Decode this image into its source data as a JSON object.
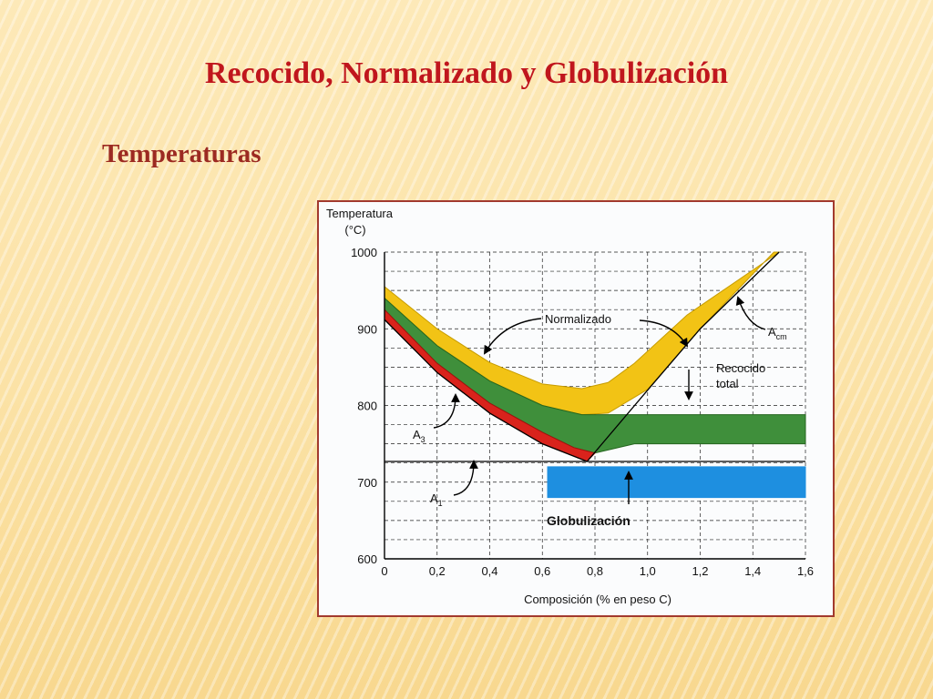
{
  "slide": {
    "title": "Recocido, Normalizado y Globulización",
    "subtitle": "Temperaturas"
  },
  "chart_data": {
    "type": "area",
    "ylabel_lines": [
      "Temperatura",
      "(°C)"
    ],
    "xlabel": "Composición (% en peso C)",
    "xlim": [
      0,
      1.6
    ],
    "ylim": [
      600,
      1000
    ],
    "x_ticks": [
      "0",
      "0,2",
      "0,4",
      "0,6",
      "0,8",
      "1,0",
      "1,2",
      "1,4",
      "1,6"
    ],
    "y_ticks": [
      "1000",
      "900",
      "800",
      "700",
      "600"
    ],
    "grid": true,
    "lines": [
      {
        "name": "A1",
        "points": [
          [
            0,
            727
          ],
          [
            1.6,
            727
          ]
        ]
      },
      {
        "name": "A3",
        "points": [
          [
            0,
            912
          ],
          [
            0.2,
            843
          ],
          [
            0.4,
            790
          ],
          [
            0.6,
            750
          ],
          [
            0.77,
            727
          ]
        ]
      },
      {
        "name": "Acm",
        "points": [
          [
            0.77,
            727
          ],
          [
            1.0,
            820
          ],
          [
            1.2,
            900
          ],
          [
            1.5,
            1000
          ]
        ]
      }
    ],
    "regions": [
      {
        "name": "Normalizado",
        "color": "#f2c315",
        "edge": "#c79c00",
        "upper": [
          [
            0,
            955
          ],
          [
            0.2,
            900
          ],
          [
            0.4,
            856
          ],
          [
            0.6,
            828
          ],
          [
            0.75,
            822
          ],
          [
            0.85,
            830
          ],
          [
            0.95,
            855
          ],
          [
            1.15,
            918
          ],
          [
            1.5,
            1000
          ]
        ],
        "lower": [
          [
            0,
            940
          ],
          [
            0.2,
            878
          ],
          [
            0.4,
            832
          ],
          [
            0.6,
            800
          ],
          [
            0.75,
            788
          ],
          [
            0.85,
            790
          ],
          [
            1.0,
            821
          ],
          [
            1.2,
            900
          ],
          [
            1.48,
            1000
          ]
        ]
      },
      {
        "name": "Recocido total",
        "color": "#3f8f3b",
        "edge": "#25661f",
        "upper": [
          [
            0,
            940
          ],
          [
            0.2,
            878
          ],
          [
            0.4,
            832
          ],
          [
            0.6,
            800
          ],
          [
            0.75,
            788
          ],
          [
            0.87,
            788
          ],
          [
            1.6,
            788
          ]
        ],
        "lower": [
          [
            0,
            925
          ],
          [
            0.2,
            855
          ],
          [
            0.4,
            803
          ],
          [
            0.6,
            765
          ],
          [
            0.72,
            745
          ],
          [
            0.8,
            738
          ],
          [
            0.95,
            750
          ],
          [
            1.6,
            750
          ]
        ]
      },
      {
        "name": "Red",
        "color": "#d9231c",
        "edge": "#a0120c",
        "upper": [
          [
            0,
            925
          ],
          [
            0.2,
            855
          ],
          [
            0.4,
            803
          ],
          [
            0.6,
            765
          ],
          [
            0.72,
            745
          ],
          [
            0.8,
            738
          ]
        ],
        "lower": [
          [
            0,
            912
          ],
          [
            0.2,
            843
          ],
          [
            0.4,
            790
          ],
          [
            0.6,
            750
          ],
          [
            0.77,
            727
          ]
        ]
      },
      {
        "name": "Globulización",
        "color": "#1e8fe0",
        "edge": "#1e8fe0",
        "upper": [
          [
            0.62,
            720
          ],
          [
            1.6,
            720
          ]
        ],
        "lower": [
          [
            0.62,
            680
          ],
          [
            1.6,
            680
          ]
        ]
      }
    ],
    "annotations": [
      {
        "text": "Normalizado",
        "bold": false
      },
      {
        "text": "Recocido",
        "bold": false
      },
      {
        "text": "total",
        "bold": false
      },
      {
        "text": "Globulización",
        "bold": true
      },
      {
        "text": "A",
        "sub": "3"
      },
      {
        "text": "A",
        "sub": "1"
      },
      {
        "text": "A",
        "sub": "cm"
      }
    ]
  }
}
